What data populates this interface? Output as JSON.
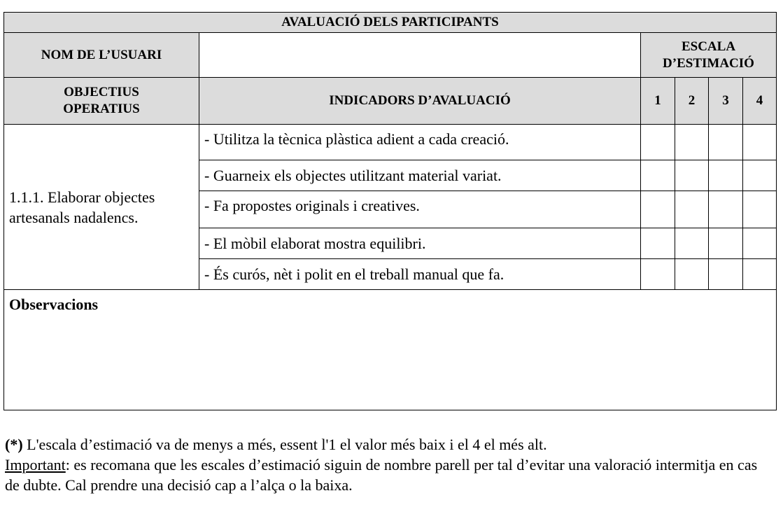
{
  "title": "AVALUACIÓ DELS PARTICIPANTS",
  "user_name_label": "NOM DE L’USUARI",
  "user_name_value": "",
  "scale_label": "ESCALA D’ESTIMACIÓ",
  "objectives_label": "OBJECTIUS OPERATIUS",
  "indicators_label": "INDICADORS D’AVALUACIÓ",
  "scale_values": [
    "1",
    "2",
    "3",
    "4"
  ],
  "objective": "1.1.1. Elaborar objectes artesanals nadalencs.",
  "indicators": [
    "- Utilitza la tècnica plàstica adient a cada creació.",
    "- Guarneix els objectes utilitzant material variat.",
    "- Fa propostes originals i creatives.",
    "- El mòbil elaborat mostra equilibri.",
    "- És curós, nèt i polit en el treball manual que fa."
  ],
  "observations_label": "Observacions",
  "notes": {
    "asterisk": "(*)",
    "line1": " L'escala d’estimació va de menys a més, essent l'1 el valor més baix i el 4 el més alt.",
    "important_label": "Important",
    "line2": ": es recomana que les escales d’estimació siguin de nombre parell per tal d’evitar una valoració intermitja en cas de dubte. Cal prendre una decisió cap a l’alça o la baixa."
  },
  "colors": {
    "header_bg": "#dcdcdc"
  }
}
